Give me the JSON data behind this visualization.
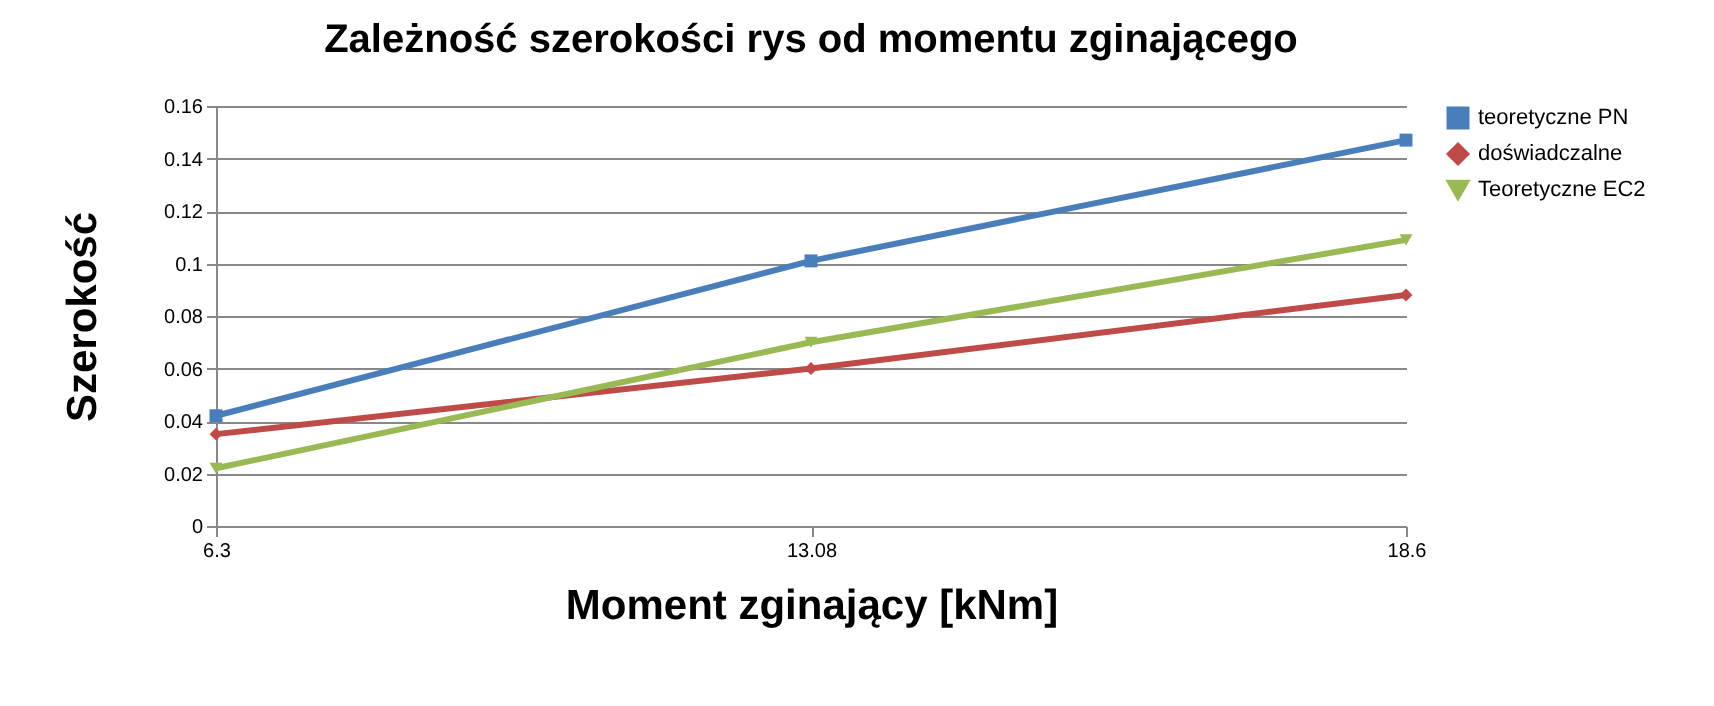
{
  "chart_data": {
    "type": "line",
    "title": "Zależność szerokości rys od momentu zginającego",
    "xlabel": "Moment zginający [kNm]",
    "ylabel": "Szerokość",
    "categories": [
      "6.3",
      "13.08",
      "18.6"
    ],
    "series": [
      {
        "name": "teoretyczne PN",
        "color": "#4a7ebb",
        "marker": "square",
        "values": [
          0.042,
          0.101,
          0.147
        ]
      },
      {
        "name": "doświadczalne",
        "color": "#be4b48",
        "marker": "diamond",
        "values": [
          0.035,
          0.06,
          0.088
        ]
      },
      {
        "name": "Teoretyczne EC2",
        "color": "#98b954",
        "marker": "triangle",
        "values": [
          0.022,
          0.07,
          0.109
        ]
      }
    ],
    "ylim": [
      0,
      0.16
    ],
    "yticks": [
      0,
      0.02,
      0.04,
      0.06,
      0.08,
      0.1,
      0.12,
      0.14,
      0.16
    ],
    "grid": "y",
    "legend": "right"
  }
}
